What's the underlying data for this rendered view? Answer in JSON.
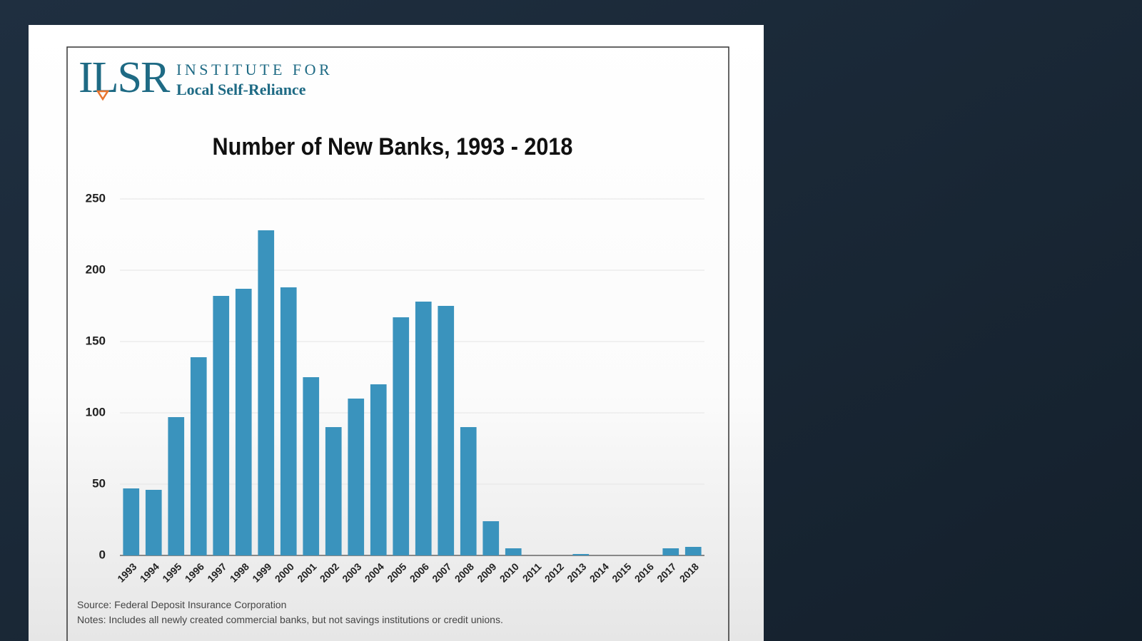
{
  "logo": {
    "mark": "ILSR",
    "line1": "INSTITUTE FOR",
    "line2": "Local Self-Reliance"
  },
  "chart_data": {
    "type": "bar",
    "title": "Number of New Banks, 1993 - 2018",
    "categories": [
      "1993",
      "1994",
      "1995",
      "1996",
      "1997",
      "1998",
      "1999",
      "2000",
      "2001",
      "2002",
      "2003",
      "2004",
      "2005",
      "2006",
      "2007",
      "2008",
      "2009",
      "2010",
      "2011",
      "2012",
      "2013",
      "2014",
      "2015",
      "2016",
      "2017",
      "2018"
    ],
    "values": [
      47,
      46,
      97,
      139,
      182,
      187,
      228,
      188,
      125,
      90,
      110,
      120,
      167,
      178,
      175,
      90,
      24,
      5,
      0,
      0,
      1,
      0,
      0,
      0,
      5,
      6
    ],
    "color": "#3a93bd",
    "ylim": [
      0,
      250
    ],
    "yticks": [
      0,
      50,
      100,
      150,
      200,
      250
    ],
    "grid": true,
    "source": "Source: Federal Deposit Insurance Corporation",
    "notes": "Notes: Includes all newly created commercial banks, but not savings institutions or credit unions."
  }
}
